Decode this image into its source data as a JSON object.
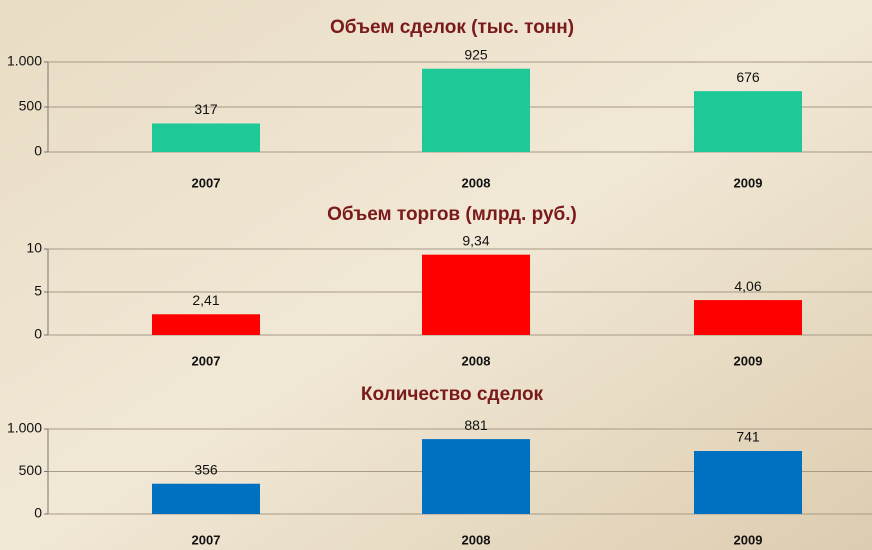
{
  "chart_data": [
    {
      "type": "bar",
      "title": "Объем сделок (тыс. тонн)",
      "categories": [
        "2007",
        "2008",
        "2009"
      ],
      "values": [
        317,
        925,
        676
      ],
      "color": "#1fc997",
      "ylim": [
        0,
        1000
      ],
      "yticks": [
        0,
        500,
        {
          "value": 1000,
          "label": "1.000"
        }
      ],
      "grid": true
    },
    {
      "type": "bar",
      "title": "Объем торгов (млрд. руб.)",
      "categories": [
        "2007",
        "2008",
        "2009"
      ],
      "values": [
        2.41,
        9.34,
        4.06
      ],
      "value_labels": [
        "2,41",
        "9,34",
        "4,06"
      ],
      "color": "#ff0000",
      "ylim": [
        0,
        10
      ],
      "yticks": [
        0,
        5,
        10
      ],
      "grid": true
    },
    {
      "type": "bar",
      "title": "Количество сделок",
      "categories": [
        "2007",
        "2008",
        "2009"
      ],
      "values": [
        356,
        881,
        741
      ],
      "color": "#0070c0",
      "ylim": [
        0,
        1000
      ],
      "yticks": [
        0,
        500,
        {
          "value": 1000,
          "label": "1.000"
        }
      ],
      "grid": true
    }
  ]
}
